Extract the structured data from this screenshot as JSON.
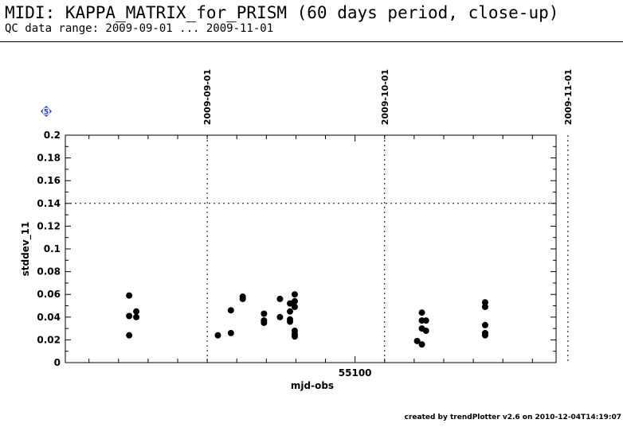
{
  "header": {
    "title": "MIDI: KAPPA_MATRIX_for_PRISM (60 days period, close-up)",
    "subtitle": "QC data range: 2009-09-01 ... 2009-11-01"
  },
  "marker": {
    "label": "5",
    "color": "#1f3fd0"
  },
  "footer": {
    "credit": "created by trendPlotter v2.6 on 2010-12-04T14:19:07"
  },
  "chart_data": {
    "type": "scatter",
    "title": "",
    "xlabel": "mjd-obs",
    "ylabel": "stddev_11",
    "xlim": [
      55051,
      55134
    ],
    "ylim": [
      0,
      0.2
    ],
    "x_tick_labels": [
      {
        "value": 55100,
        "label": "55100"
      }
    ],
    "x_minor_step": 5,
    "y_ticks": [
      {
        "value": 0,
        "label": "0"
      },
      {
        "value": 0.02,
        "label": "0.02"
      },
      {
        "value": 0.04,
        "label": "0.04"
      },
      {
        "value": 0.06,
        "label": "0.06"
      },
      {
        "value": 0.08,
        "label": "0.08"
      },
      {
        "value": 0.1,
        "label": "0.1"
      },
      {
        "value": 0.12,
        "label": "0.12"
      },
      {
        "value": 0.14,
        "label": "0.14"
      },
      {
        "value": 0.16,
        "label": "0.16"
      },
      {
        "value": 0.18,
        "label": "0.18"
      },
      {
        "value": 0.2,
        "label": "0.2"
      }
    ],
    "date_markers": [
      {
        "mjd": 55075,
        "label": "2009-09-01"
      },
      {
        "mjd": 55105,
        "label": "2009-10-01"
      },
      {
        "mjd": 55136,
        "label": "2009-11-01"
      }
    ],
    "threshold": 0.14,
    "grid": false,
    "point_color": "#000000",
    "points": [
      [
        55061.8,
        0.059
      ],
      [
        55061.8,
        0.041
      ],
      [
        55061.8,
        0.024
      ],
      [
        55063.0,
        0.045
      ],
      [
        55063.0,
        0.04
      ],
      [
        55076.8,
        0.024
      ],
      [
        55079.0,
        0.046
      ],
      [
        55079.0,
        0.026
      ],
      [
        55081.0,
        0.058
      ],
      [
        55081.0,
        0.056
      ],
      [
        55084.6,
        0.043
      ],
      [
        55084.6,
        0.037
      ],
      [
        55084.6,
        0.035
      ],
      [
        55087.3,
        0.056
      ],
      [
        55087.3,
        0.04
      ],
      [
        55089.0,
        0.052
      ],
      [
        55089.0,
        0.045
      ],
      [
        55089.0,
        0.038
      ],
      [
        55089.0,
        0.036
      ],
      [
        55089.8,
        0.06
      ],
      [
        55089.8,
        0.054
      ],
      [
        55089.8,
        0.049
      ],
      [
        55089.8,
        0.028
      ],
      [
        55089.8,
        0.025
      ],
      [
        55089.8,
        0.023
      ],
      [
        55110.5,
        0.019
      ],
      [
        55111.3,
        0.044
      ],
      [
        55111.3,
        0.037
      ],
      [
        55111.3,
        0.03
      ],
      [
        55111.3,
        0.016
      ],
      [
        55112.0,
        0.037
      ],
      [
        55112.0,
        0.028
      ],
      [
        55122.0,
        0.053
      ],
      [
        55122.0,
        0.049
      ],
      [
        55122.0,
        0.033
      ],
      [
        55122.0,
        0.026
      ],
      [
        55122.0,
        0.024
      ]
    ]
  }
}
